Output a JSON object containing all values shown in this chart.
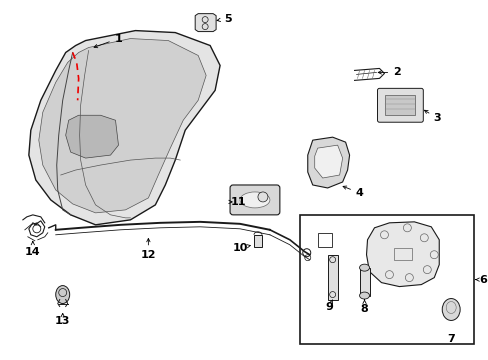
{
  "bg_color": "#ffffff",
  "line_color": "#1a1a1a",
  "red_dash_color": "#ee0000",
  "gray_shade": "#c8c8c8",
  "mid_gray": "#999999",
  "light_gray": "#e4e4e4"
}
